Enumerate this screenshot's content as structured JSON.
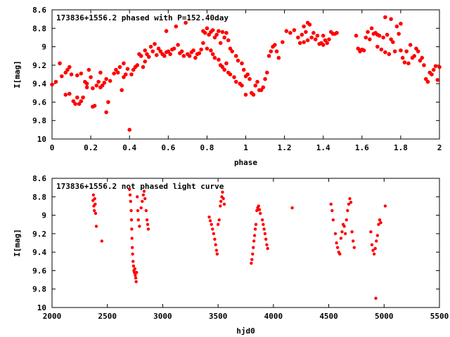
{
  "chart_data": [
    {
      "type": "scatter",
      "title": "173836+1556.2 phased with P=152.40day",
      "xlabel": "phase",
      "ylabel": "I[mag]",
      "xlim": [
        0,
        2
      ],
      "ylim": [
        10,
        8.6
      ],
      "y_inverted": true,
      "grid": false,
      "marker_color": "#ff0000",
      "xticks": [
        "0",
        "0.2",
        "0.4",
        "0.6",
        "0.8",
        "1",
        "1.2",
        "1.4",
        "1.6",
        "1.8",
        "2"
      ],
      "yticks": [
        "8.6",
        "8.8",
        "9",
        "9.2",
        "9.4",
        "9.6",
        "9.8",
        "10"
      ],
      "points": [
        [
          0.0,
          9.41
        ],
        [
          0.02,
          9.38
        ],
        [
          0.04,
          9.18
        ],
        [
          0.05,
          9.32
        ],
        [
          0.07,
          9.28
        ],
        [
          0.08,
          9.25
        ],
        [
          0.07,
          9.52
        ],
        [
          0.09,
          9.51
        ],
        [
          0.09,
          9.22
        ],
        [
          0.1,
          9.3
        ],
        [
          0.11,
          9.59
        ],
        [
          0.12,
          9.62
        ],
        [
          0.13,
          9.55
        ],
        [
          0.13,
          9.31
        ],
        [
          0.14,
          9.62
        ],
        [
          0.15,
          9.59
        ],
        [
          0.15,
          9.29
        ],
        [
          0.16,
          9.55
        ],
        [
          0.17,
          9.38
        ],
        [
          0.18,
          9.44
        ],
        [
          0.18,
          9.4
        ],
        [
          0.19,
          9.25
        ],
        [
          0.2,
          9.33
        ],
        [
          0.21,
          9.45
        ],
        [
          0.21,
          9.65
        ],
        [
          0.22,
          9.64
        ],
        [
          0.23,
          9.42
        ],
        [
          0.24,
          9.38
        ],
        [
          0.25,
          9.44
        ],
        [
          0.25,
          9.28
        ],
        [
          0.26,
          9.42
        ],
        [
          0.27,
          9.39
        ],
        [
          0.28,
          9.71
        ],
        [
          0.28,
          9.35
        ],
        [
          0.29,
          9.6
        ],
        [
          0.3,
          9.37
        ],
        [
          0.32,
          9.29
        ],
        [
          0.33,
          9.25
        ],
        [
          0.34,
          9.28
        ],
        [
          0.35,
          9.22
        ],
        [
          0.36,
          9.47
        ],
        [
          0.37,
          9.18
        ],
        [
          0.37,
          9.33
        ],
        [
          0.38,
          9.3
        ],
        [
          0.39,
          9.24
        ],
        [
          0.4,
          9.9
        ],
        [
          0.41,
          9.3
        ],
        [
          0.42,
          9.25
        ],
        [
          0.43,
          9.22
        ],
        [
          0.44,
          9.2
        ],
        [
          0.45,
          9.08
        ],
        [
          0.46,
          9.1
        ],
        [
          0.47,
          9.22
        ],
        [
          0.48,
          9.16
        ],
        [
          0.48,
          9.04
        ],
        [
          0.49,
          9.08
        ],
        [
          0.5,
          9.11
        ],
        [
          0.51,
          9.0
        ],
        [
          0.52,
          9.05
        ],
        [
          0.53,
          8.97
        ],
        [
          0.54,
          9.09
        ],
        [
          0.55,
          9.02
        ],
        [
          0.56,
          9.05
        ],
        [
          0.57,
          9.08
        ],
        [
          0.58,
          9.1
        ],
        [
          0.59,
          9.06
        ],
        [
          0.59,
          8.83
        ],
        [
          0.6,
          9.05
        ],
        [
          0.61,
          9.08
        ],
        [
          0.62,
          9.03
        ],
        [
          0.63,
          9.02
        ],
        [
          0.64,
          8.78
        ],
        [
          0.65,
          8.98
        ],
        [
          0.66,
          9.07
        ],
        [
          0.67,
          9.05
        ],
        [
          0.68,
          9.1
        ],
        [
          0.69,
          8.74
        ],
        [
          0.7,
          9.08
        ],
        [
          0.71,
          9.1
        ],
        [
          0.72,
          9.06
        ],
        [
          0.73,
          9.04
        ],
        [
          0.74,
          9.12
        ],
        [
          0.75,
          9.08
        ],
        [
          0.76,
          9.07
        ],
        [
          0.77,
          9.03
        ],
        [
          0.78,
          8.96
        ],
        [
          0.78,
          8.83
        ],
        [
          0.79,
          8.85
        ],
        [
          0.8,
          9.02
        ],
        [
          0.8,
          8.8
        ],
        [
          0.81,
          8.87
        ],
        [
          0.82,
          9.04
        ],
        [
          0.82,
          8.84
        ],
        [
          0.83,
          9.08
        ],
        [
          0.83,
          8.82
        ],
        [
          0.84,
          8.9
        ],
        [
          0.84,
          9.12
        ],
        [
          0.85,
          8.87
        ],
        [
          0.86,
          9.14
        ],
        [
          0.86,
          8.83
        ],
        [
          0.87,
          8.96
        ],
        [
          0.87,
          9.2
        ],
        [
          0.88,
          8.84
        ],
        [
          0.88,
          9.22
        ],
        [
          0.89,
          8.9
        ],
        [
          0.89,
          9.25
        ],
        [
          0.9,
          8.85
        ],
        [
          0.9,
          9.18
        ],
        [
          0.91,
          8.93
        ],
        [
          0.91,
          9.28
        ],
        [
          0.92,
          9.02
        ],
        [
          0.92,
          9.3
        ],
        [
          0.93,
          9.05
        ],
        [
          0.94,
          9.33
        ],
        [
          0.95,
          9.1
        ],
        [
          0.95,
          9.38
        ],
        [
          0.96,
          9.15
        ],
        [
          0.97,
          9.4
        ],
        [
          0.98,
          9.18
        ],
        [
          0.98,
          9.42
        ],
        [
          0.99,
          9.25
        ],
        [
          1.0,
          9.52
        ],
        [
          1.0,
          9.32
        ],
        [
          1.01,
          9.3
        ],
        [
          1.02,
          9.35
        ],
        [
          1.03,
          9.5
        ],
        [
          1.04,
          9.52
        ],
        [
          1.05,
          9.42
        ],
        [
          1.06,
          9.38
        ],
        [
          1.07,
          9.47
        ],
        [
          1.08,
          9.47
        ],
        [
          1.09,
          9.44
        ],
        [
          1.1,
          9.35
        ],
        [
          1.11,
          9.28
        ],
        [
          1.12,
          9.1
        ],
        [
          1.13,
          9.05
        ],
        [
          1.14,
          9.0
        ],
        [
          1.15,
          8.98
        ],
        [
          1.16,
          9.05
        ],
        [
          1.17,
          9.12
        ],
        [
          1.19,
          8.95
        ],
        [
          1.21,
          8.83
        ],
        [
          1.23,
          8.85
        ],
        [
          1.25,
          8.82
        ],
        [
          1.27,
          8.9
        ],
        [
          1.28,
          8.96
        ],
        [
          1.29,
          8.87
        ],
        [
          1.3,
          8.78
        ],
        [
          1.3,
          8.95
        ],
        [
          1.31,
          8.84
        ],
        [
          1.32,
          8.74
        ],
        [
          1.32,
          8.93
        ],
        [
          1.33,
          8.76
        ],
        [
          1.34,
          8.9
        ],
        [
          1.35,
          8.85
        ],
        [
          1.36,
          8.92
        ],
        [
          1.37,
          8.88
        ],
        [
          1.38,
          8.97
        ],
        [
          1.39,
          8.96
        ],
        [
          1.4,
          8.98
        ],
        [
          1.4,
          8.88
        ],
        [
          1.41,
          8.93
        ],
        [
          1.42,
          8.96
        ],
        [
          1.43,
          8.92
        ],
        [
          1.44,
          8.84
        ],
        [
          1.45,
          8.86
        ],
        [
          1.46,
          8.86
        ],
        [
          1.47,
          8.85
        ],
        [
          1.57,
          8.88
        ],
        [
          1.58,
          9.02
        ],
        [
          1.59,
          9.05
        ],
        [
          1.6,
          9.03
        ],
        [
          1.61,
          9.04
        ],
        [
          1.62,
          8.9
        ],
        [
          1.63,
          8.84
        ],
        [
          1.64,
          8.92
        ],
        [
          1.65,
          8.8
        ],
        [
          1.66,
          8.86
        ],
        [
          1.67,
          8.85
        ],
        [
          1.68,
          8.87
        ],
        [
          1.68,
          9.0
        ],
        [
          1.69,
          8.88
        ],
        [
          1.7,
          9.03
        ],
        [
          1.71,
          8.9
        ],
        [
          1.72,
          8.68
        ],
        [
          1.72,
          9.06
        ],
        [
          1.73,
          8.87
        ],
        [
          1.74,
          9.08
        ],
        [
          1.75,
          8.92
        ],
        [
          1.75,
          8.7
        ],
        [
          1.76,
          8.95
        ],
        [
          1.77,
          9.05
        ],
        [
          1.78,
          8.78
        ],
        [
          1.79,
          8.86
        ],
        [
          1.8,
          8.75
        ],
        [
          1.8,
          9.04
        ],
        [
          1.81,
          9.12
        ],
        [
          1.82,
          9.17
        ],
        [
          1.83,
          9.05
        ],
        [
          1.84,
          9.18
        ],
        [
          1.85,
          8.98
        ],
        [
          1.86,
          9.12
        ],
        [
          1.87,
          9.1
        ],
        [
          1.88,
          9.02
        ],
        [
          1.89,
          9.05
        ],
        [
          1.9,
          9.15
        ],
        [
          1.91,
          9.12
        ],
        [
          1.92,
          9.2
        ],
        [
          1.93,
          9.35
        ],
        [
          1.94,
          9.38
        ],
        [
          1.95,
          9.28
        ],
        [
          1.96,
          9.3
        ],
        [
          1.97,
          9.25
        ],
        [
          1.98,
          9.21
        ],
        [
          1.99,
          9.36
        ],
        [
          2.0,
          9.22
        ]
      ]
    },
    {
      "type": "scatter",
      "title": "173836+1556.2 not phased light curve",
      "xlabel": "hjd0",
      "ylabel": "I[mag]",
      "xlim": [
        2000,
        5500
      ],
      "ylim": [
        10,
        8.6
      ],
      "y_inverted": true,
      "grid": false,
      "marker_color": "#ff0000",
      "xticks": [
        "2000",
        "2500",
        "3000",
        "3500",
        "4000",
        "4500",
        "5000",
        "5500"
      ],
      "yticks": [
        "8.6",
        "8.8",
        "9",
        "9.2",
        "9.4",
        "9.6",
        "9.8",
        "10"
      ],
      "points": [
        [
          2370,
          8.84
        ],
        [
          2374,
          8.78
        ],
        [
          2378,
          8.9
        ],
        [
          2382,
          8.95
        ],
        [
          2386,
          8.82
        ],
        [
          2390,
          8.88
        ],
        [
          2394,
          8.98
        ],
        [
          2400,
          9.12
        ],
        [
          2450,
          9.28
        ],
        [
          2700,
          8.72
        ],
        [
          2705,
          8.78
        ],
        [
          2710,
          8.85
        ],
        [
          2715,
          8.95
        ],
        [
          2718,
          9.05
        ],
        [
          2720,
          9.15
        ],
        [
          2722,
          9.25
        ],
        [
          2725,
          9.35
        ],
        [
          2728,
          9.42
        ],
        [
          2732,
          9.5
        ],
        [
          2736,
          9.55
        ],
        [
          2740,
          9.6
        ],
        [
          2744,
          9.62
        ],
        [
          2748,
          9.58
        ],
        [
          2752,
          9.65
        ],
        [
          2756,
          9.68
        ],
        [
          2760,
          9.72
        ],
        [
          2764,
          9.62
        ],
        [
          2770,
          8.8
        ],
        [
          2775,
          8.95
        ],
        [
          2780,
          9.05
        ],
        [
          2790,
          9.12
        ],
        [
          2805,
          8.92
        ],
        [
          2815,
          8.85
        ],
        [
          2825,
          8.78
        ],
        [
          2832,
          8.74
        ],
        [
          2840,
          8.82
        ],
        [
          2850,
          8.95
        ],
        [
          2858,
          9.05
        ],
        [
          2864,
          9.1
        ],
        [
          2870,
          9.15
        ],
        [
          3420,
          9.02
        ],
        [
          3430,
          9.06
        ],
        [
          3440,
          9.1
        ],
        [
          3450,
          9.15
        ],
        [
          3460,
          9.2
        ],
        [
          3470,
          9.26
        ],
        [
          3478,
          9.32
        ],
        [
          3486,
          9.38
        ],
        [
          3492,
          9.42
        ],
        [
          3500,
          9.1
        ],
        [
          3510,
          9.05
        ],
        [
          3520,
          8.9
        ],
        [
          3526,
          8.85
        ],
        [
          3534,
          8.8
        ],
        [
          3540,
          8.75
        ],
        [
          3548,
          8.82
        ],
        [
          3556,
          8.88
        ],
        [
          3800,
          9.52
        ],
        [
          3806,
          9.48
        ],
        [
          3812,
          9.42
        ],
        [
          3818,
          9.35
        ],
        [
          3824,
          9.28
        ],
        [
          3830,
          9.22
        ],
        [
          3836,
          9.15
        ],
        [
          3842,
          9.1
        ],
        [
          3850,
          8.95
        ],
        [
          3858,
          8.92
        ],
        [
          3866,
          8.9
        ],
        [
          3874,
          8.94
        ],
        [
          3882,
          8.98
        ],
        [
          3900,
          9.05
        ],
        [
          3908,
          9.1
        ],
        [
          3916,
          9.15
        ],
        [
          3924,
          9.2
        ],
        [
          3932,
          9.26
        ],
        [
          3940,
          9.32
        ],
        [
          3948,
          9.36
        ],
        [
          4170,
          8.92
        ],
        [
          4520,
          8.88
        ],
        [
          4530,
          8.95
        ],
        [
          4540,
          9.05
        ],
        [
          4560,
          9.2
        ],
        [
          4570,
          9.3
        ],
        [
          4580,
          9.35
        ],
        [
          4590,
          9.4
        ],
        [
          4600,
          9.42
        ],
        [
          4610,
          9.25
        ],
        [
          4620,
          9.18
        ],
        [
          4630,
          9.1
        ],
        [
          4640,
          9.12
        ],
        [
          4650,
          9.2
        ],
        [
          4660,
          9.05
        ],
        [
          4670,
          8.95
        ],
        [
          4680,
          8.88
        ],
        [
          4690,
          8.82
        ],
        [
          4700,
          8.86
        ],
        [
          4710,
          9.18
        ],
        [
          4720,
          9.28
        ],
        [
          4730,
          9.35
        ],
        [
          4880,
          9.18
        ],
        [
          4890,
          9.32
        ],
        [
          4900,
          9.38
        ],
        [
          4910,
          9.42
        ],
        [
          4920,
          9.36
        ],
        [
          4925,
          9.9
        ],
        [
          4930,
          9.28
        ],
        [
          4940,
          9.22
        ],
        [
          4950,
          9.1
        ],
        [
          4960,
          9.05
        ],
        [
          4970,
          9.08
        ],
        [
          5010,
          8.9
        ]
      ]
    }
  ]
}
